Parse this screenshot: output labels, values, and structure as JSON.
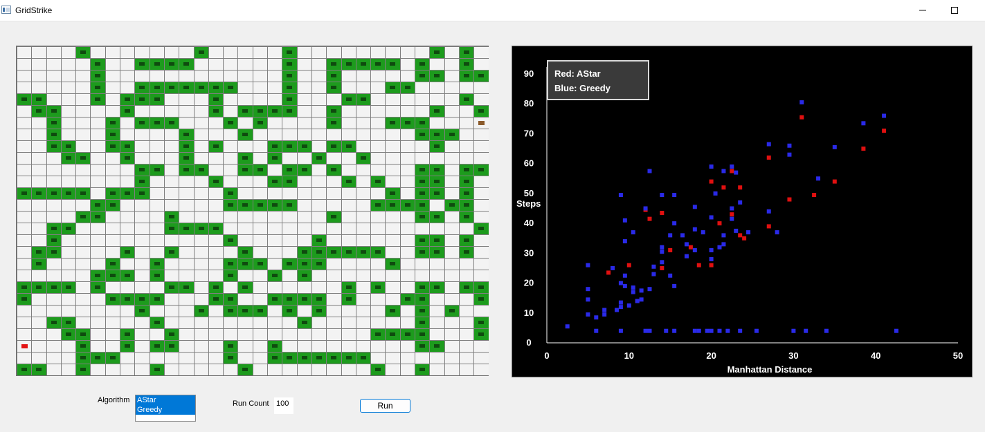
{
  "window": {
    "title": "GridStrike"
  },
  "grid": {
    "cols": 32,
    "rows": 28,
    "cells_legend": {
      "wall": "#",
      "empty": ".",
      "start": "S",
      "goal": "G"
    },
    "map": [
      "....#.......#.....#.........#.#.",
      ".....#..####......#..#####.#..#.",
      ".....#............#..#.....##.###",
      ".....#..#######...#..#...##.....#",
      "##...#.###...#....#...##......#.#",
      ".##....#.....#.####..#......#..#",
      "..#...#.###...#.#....#...###...G.###",
      "..#...#....#...#...........###..#",
      "..##..##...#.#...###.##.....#....",
      "...##..#...#...#.#..#..#........#.",
      "........##.##..##.##.#.....##.##.#.",
      "........#....#...##...#.#..##.#.####",
      "#####.###.....#..........#.##.#.#..#",
      ".....##.......#####.....####.##.#.#.",
      "....##....#..........#.....##.#.#.#.",
      "..##......####.................#.#.#",
      "..#...........#.....#......##.#.#.#.",
      ".##....#..#....#...######..##.#.#.#.",
      ".#....#..#....###.###....#......#.#.",
      ".....###.#....#..#.#..............##.###",
      "####.#....##.#.#......#.#..##.##.#..",
      "#.....####...##..####.#...##...##...",
      "........#...#.###.#.#....#.#.#...#.##",
      "..##.....#.........#.......#...#....##",
      "...##..#..#.............####...#..##.",
      "S...#..#.##...#..#.........##...##.####.",
      "....###.......#..#######..........#..",
      "##..#....#.....#........#..#.....#...###"
    ]
  },
  "chart_data": {
    "type": "scatter",
    "title": "",
    "xlabel": "Manhattan Distance",
    "ylabel": "Steps",
    "xlim": [
      0,
      50
    ],
    "ylim": [
      0,
      90
    ],
    "xticks": [
      0,
      10,
      20,
      30,
      40,
      50
    ],
    "yticks": [
      0,
      10,
      20,
      30,
      40,
      50,
      60,
      70,
      80,
      90
    ],
    "legend_lines": [
      "Red: AStar",
      "Blue: Greedy"
    ],
    "background": "#000000",
    "series": [
      {
        "name": "AStar",
        "color": "#e01010",
        "points": [
          [
            7.5,
            23.5
          ],
          [
            10.0,
            26.0
          ],
          [
            11.0,
            14.0
          ],
          [
            12.0,
            44.5
          ],
          [
            12.5,
            41.5
          ],
          [
            14.0,
            43.5
          ],
          [
            14.0,
            25.0
          ],
          [
            15.0,
            31.0
          ],
          [
            17.5,
            32.0
          ],
          [
            18.5,
            26.0
          ],
          [
            20.0,
            54.0
          ],
          [
            20.0,
            26.0
          ],
          [
            21.0,
            40.0
          ],
          [
            21.5,
            52.0
          ],
          [
            22.5,
            57.5
          ],
          [
            22.5,
            43.0
          ],
          [
            23.5,
            52.0
          ],
          [
            23.5,
            36.0
          ],
          [
            24.0,
            35.0
          ],
          [
            27.0,
            62.0
          ],
          [
            27.0,
            39.0
          ],
          [
            29.5,
            48.0
          ],
          [
            31.0,
            75.5
          ],
          [
            32.5,
            49.5
          ],
          [
            35.0,
            54.0
          ],
          [
            38.5,
            65.0
          ],
          [
            41.0,
            71.0
          ]
        ]
      },
      {
        "name": "Greedy",
        "color": "#2a2ae8",
        "points": [
          [
            2.5,
            5.5
          ],
          [
            5.0,
            26.0
          ],
          [
            5.0,
            18.0
          ],
          [
            5.0,
            14.5
          ],
          [
            5.0,
            9.5
          ],
          [
            6.0,
            8.5
          ],
          [
            6.0,
            4.0
          ],
          [
            7.0,
            11.0
          ],
          [
            7.0,
            9.5
          ],
          [
            8.0,
            25.0
          ],
          [
            8.5,
            11.0
          ],
          [
            9.0,
            49.5
          ],
          [
            9.0,
            20.0
          ],
          [
            9.0,
            13.5
          ],
          [
            9.0,
            12.0
          ],
          [
            9.0,
            4.0
          ],
          [
            9.5,
            34.0
          ],
          [
            9.5,
            41.0
          ],
          [
            9.5,
            22.5
          ],
          [
            9.5,
            19.0
          ],
          [
            10.0,
            12.5
          ],
          [
            10.5,
            17.0
          ],
          [
            10.5,
            18.5
          ],
          [
            10.5,
            37.0
          ],
          [
            11.0,
            14.0
          ],
          [
            11.5,
            17.5
          ],
          [
            11.5,
            14.5
          ],
          [
            12.0,
            45.0
          ],
          [
            12.0,
            4.0
          ],
          [
            12.5,
            18.0
          ],
          [
            12.5,
            4.0
          ],
          [
            12.5,
            57.5
          ],
          [
            13.0,
            25.5
          ],
          [
            13.0,
            23.0
          ],
          [
            14.0,
            49.5
          ],
          [
            14.0,
            32.0
          ],
          [
            14.0,
            30.5
          ],
          [
            14.0,
            27.0
          ],
          [
            14.5,
            4.0
          ],
          [
            15.0,
            36.0
          ],
          [
            15.0,
            22.5
          ],
          [
            15.5,
            4.0
          ],
          [
            15.5,
            49.5
          ],
          [
            15.5,
            40.0
          ],
          [
            15.5,
            19.0
          ],
          [
            16.5,
            36.0
          ],
          [
            17.0,
            29.0
          ],
          [
            17.0,
            33.0
          ],
          [
            18.0,
            45.5
          ],
          [
            18.0,
            38.0
          ],
          [
            18.0,
            31.0
          ],
          [
            18.0,
            4.0
          ],
          [
            18.5,
            4.0
          ],
          [
            19.0,
            37.0
          ],
          [
            19.5,
            4.0
          ],
          [
            20.0,
            59.0
          ],
          [
            20.0,
            42.0
          ],
          [
            20.0,
            31.0
          ],
          [
            20.0,
            28.0
          ],
          [
            20.0,
            4.0
          ],
          [
            20.5,
            50.0
          ],
          [
            21.0,
            32.0
          ],
          [
            21.0,
            4.0
          ],
          [
            21.5,
            57.5
          ],
          [
            21.5,
            33.0
          ],
          [
            21.5,
            36.0
          ],
          [
            22.0,
            4.0
          ],
          [
            22.5,
            59.0
          ],
          [
            22.5,
            45.0
          ],
          [
            22.5,
            41.5
          ],
          [
            23.0,
            57.0
          ],
          [
            23.0,
            37.5
          ],
          [
            23.5,
            47.0
          ],
          [
            23.5,
            4.0
          ],
          [
            24.5,
            37.0
          ],
          [
            25.5,
            4.0
          ],
          [
            27.0,
            66.5
          ],
          [
            27.0,
            44.0
          ],
          [
            28.0,
            37.0
          ],
          [
            29.5,
            66.0
          ],
          [
            29.5,
            63.0
          ],
          [
            30.0,
            4.0
          ],
          [
            31.0,
            80.5
          ],
          [
            31.5,
            4.0
          ],
          [
            33.0,
            55.0
          ],
          [
            34.0,
            4.0
          ],
          [
            35.0,
            65.5
          ],
          [
            38.5,
            73.5
          ],
          [
            41.0,
            76.0
          ],
          [
            42.5,
            4.0
          ]
        ]
      }
    ],
    "grid": false,
    "legend_position": "top-left"
  },
  "controls": {
    "algorithm_label": "Algorithm",
    "algorithm_options": [
      "AStar",
      "Greedy"
    ],
    "run_count_label": "Run Count",
    "run_count_value": "100",
    "run_button": "Run"
  }
}
